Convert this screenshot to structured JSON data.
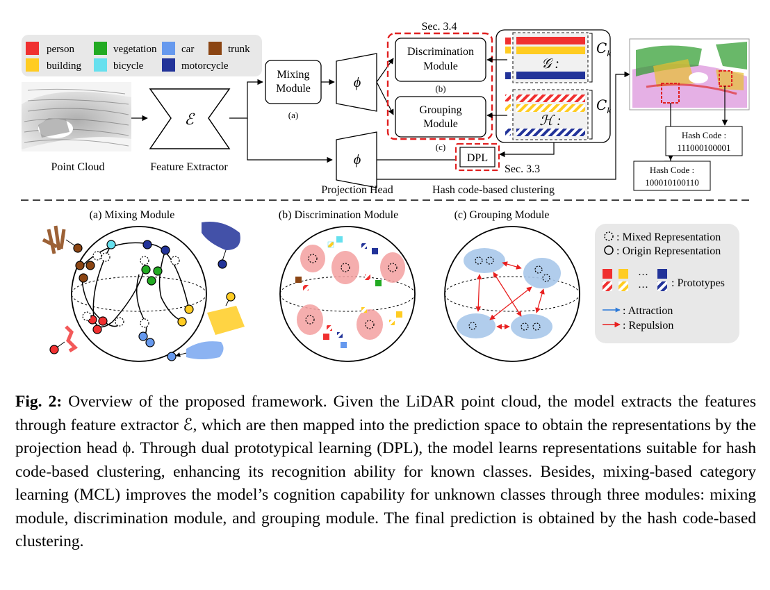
{
  "legend": {
    "items": [
      {
        "label": "person",
        "color": "#f03030"
      },
      {
        "label": "vegetation",
        "color": "#22aa22"
      },
      {
        "label": "car",
        "color": "#6699ee"
      },
      {
        "label": "trunk",
        "color": "#8b4513"
      },
      {
        "label": "building",
        "color": "#ffcc22"
      },
      {
        "label": "bicycle",
        "color": "#66e0ee"
      },
      {
        "label": "motorcycle",
        "color": "#223399"
      }
    ]
  },
  "pipeline": {
    "point_cloud": "Point Cloud",
    "feature_extractor": "Feature Extractor",
    "encoder_symbol": "ℰ",
    "mixing_line1": "Mixing",
    "mixing_line2": "Module",
    "mixing_tag": "(a)",
    "phi": "ϕ",
    "projection_head": "Projection Head",
    "sec34": "Sec. 3.4",
    "disc_line1": "Discrimination",
    "disc_line2": "Module",
    "disc_tag": "(b)",
    "group_line1": "Grouping",
    "group_line2": "Module",
    "group_tag": "(c)",
    "g_symbol": "𝒢 :",
    "h_symbol": "ℋ :",
    "ck": "𝐶",
    "ck_sub": "k",
    "dpl": "DPL",
    "sec33": "Sec. 3.3",
    "hash_clustering": "Hash code-based clustering",
    "hash1_label": "Hash Code :",
    "hash1_value": "111000100001",
    "hash2_label": "Hash Code :",
    "hash2_value": "100010100110"
  },
  "panels": {
    "mixing_title": "(a)  Mixing Module",
    "disc_title": "(b)  Discrimination Module",
    "group_title": "(c)  Grouping Module"
  },
  "key": {
    "mixed": ": Mixed Representation",
    "origin": ": Origin Representation",
    "dots": "···",
    "prototypes": ": Prototypes",
    "attraction": ": Attraction",
    "repulsion": ": Repulsion"
  },
  "caption": {
    "label": "Fig. 2:",
    "text": " Overview of the proposed framework. Given the LiDAR point cloud, the model extracts the features through feature extractor ℰ, which are then mapped into the prediction space to obtain the representations by the projection head ϕ. Through dual prototypical learning (DPL), the model learns representations suitable for hash code-based clustering, enhancing its recognition ability for known classes. Besides, mixing-based category learning (MCL) improves the model’s cognition capability for unknown classes through three modules: mixing module, discrimination module, and grouping module. The final prediction is obtained by the hash code-based clustering."
  }
}
